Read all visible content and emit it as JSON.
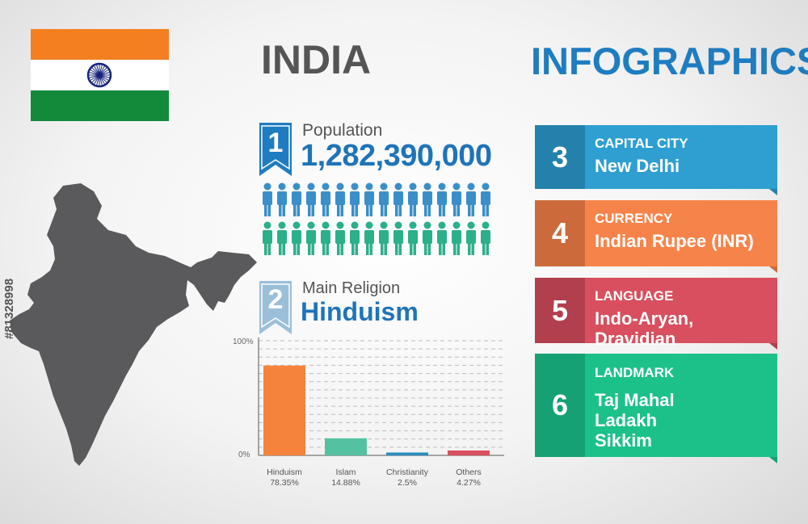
{
  "header": {
    "country": "INDIA",
    "subtitle": "INFOGRAPHICS"
  },
  "flag": {
    "colors": [
      "#f47f20",
      "#ffffff",
      "#138a3a"
    ],
    "emblem_color": "#16237a",
    "emblem_icon": "ashoka-chakra-icon"
  },
  "map": {
    "icon": "india-map-icon",
    "color": "#5a5a5c"
  },
  "stock_id": "#81328998",
  "population": {
    "number": "1",
    "label": "Population",
    "value": "1,282,390,000",
    "people_colors": [
      "#3a8fc9",
      "#2bb08a"
    ]
  },
  "religion": {
    "number": "2",
    "label": "Main Religion",
    "value": "Hinduism"
  },
  "chart_data": {
    "type": "bar",
    "categories": [
      "Hinduism",
      "Islam",
      "Christianity",
      "Others"
    ],
    "values": [
      78.35,
      14.88,
      2.5,
      4.27
    ],
    "value_labels": [
      "78.35%",
      "14.88%",
      "2.5%",
      "4.27%"
    ],
    "colors": [
      "#f5833b",
      "#54c2a1",
      "#2a8dbf",
      "#d9505d"
    ],
    "ylim": [
      0,
      100
    ],
    "y_tick_labels": [
      "0%",
      "100%"
    ],
    "grid": true
  },
  "panels": [
    {
      "number": "3",
      "caption": "CAPITAL CITY",
      "lines": [
        "New Delhi"
      ],
      "color": "#2e9fd0",
      "dark": "#2481ab"
    },
    {
      "number": "4",
      "caption": "CURRENCY",
      "lines": [
        "Indian Rupee (INR)"
      ],
      "color": "#f6844a",
      "dark": "#cc6a3c"
    },
    {
      "number": "5",
      "caption": "LANGUAGE",
      "lines": [
        "Indo-Aryan, Dravidian"
      ],
      "color": "#d84f5f",
      "dark": "#b23f4e"
    },
    {
      "number": "6",
      "caption": "LANDMARK",
      "lines": [
        "Taj Mahal",
        "Ladakh",
        "Sikkim"
      ],
      "color": "#1cc18a",
      "dark": "#15a173"
    }
  ]
}
